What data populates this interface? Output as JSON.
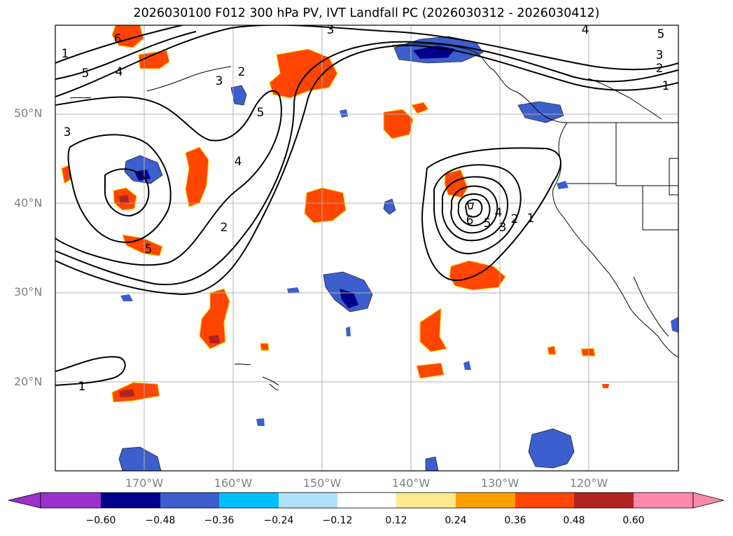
{
  "title": "2026030100 F012 300 hPa PV, IVT Landfall PC (2026030312 - 2026030412)",
  "map": {
    "lat_labels": [
      "50°N",
      "40°N",
      "30°N",
      "20°N"
    ],
    "lon_labels": [
      "170°W",
      "160°W",
      "150°W",
      "140°W",
      "130°W",
      "120°W"
    ],
    "lat_range": [
      10,
      60
    ],
    "lon_range": [
      -180,
      -110
    ],
    "contour_labels": [
      "1",
      "2",
      "3",
      "4",
      "5",
      "6",
      "3",
      "4",
      "5",
      "3",
      "2",
      "1",
      "2",
      "3",
      "4",
      "5",
      "5",
      "1",
      "1",
      "2",
      "3",
      "4",
      "5",
      "6"
    ]
  },
  "colorbar": {
    "ticks": [
      "−0.60",
      "−0.48",
      "−0.36",
      "−0.24",
      "−0.12",
      "0.12",
      "0.24",
      "0.36",
      "0.48",
      "0.60"
    ],
    "colors": [
      "#9932cc",
      "#00008b",
      "#3c5fcd",
      "#00bfff",
      "#aee2fa",
      "#ffffff",
      "#ffe98c",
      "#ff9f00",
      "#ff4500",
      "#b22222",
      "#ff88aa"
    ]
  },
  "colors": {
    "grid": "#b0b0b0",
    "coast": "#000000",
    "contour": "#000000"
  }
}
